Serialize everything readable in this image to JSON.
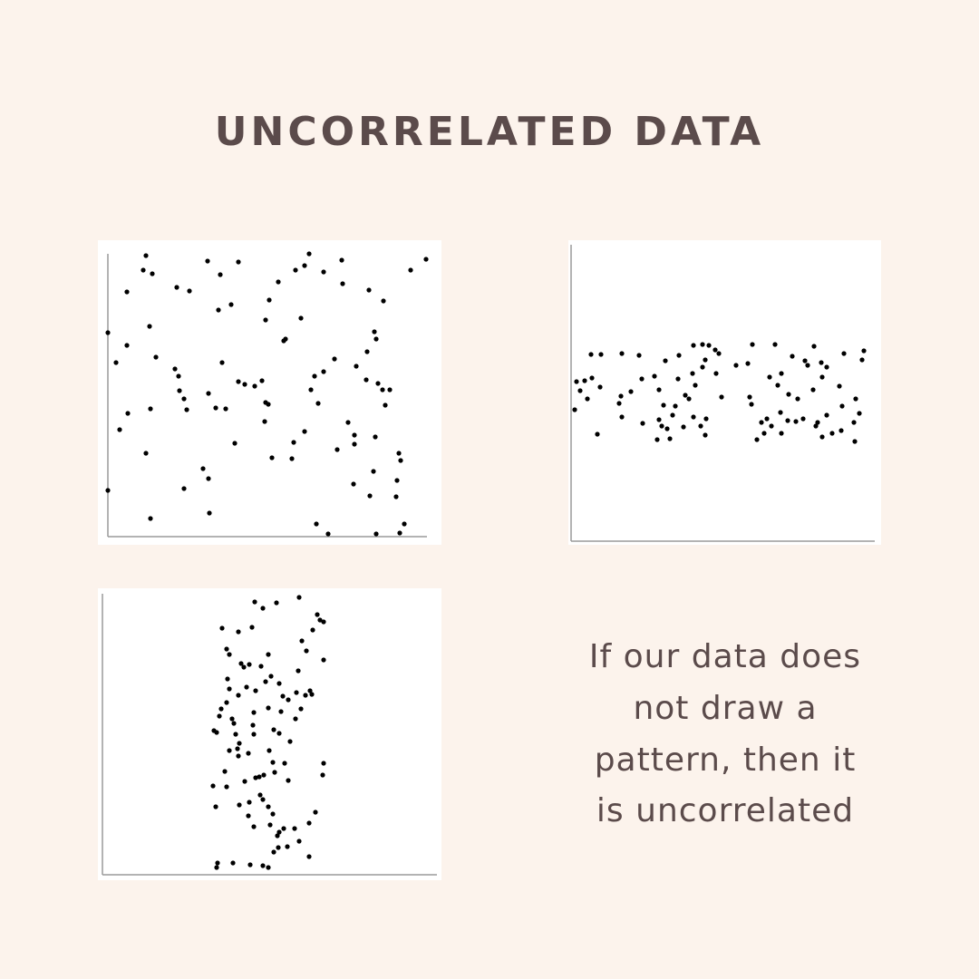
{
  "title": "UNCORRELATED DATA",
  "caption": [
    "If our data does",
    "not draw a",
    "pattern, then it",
    "is uncorrelated"
  ],
  "chart_data": [
    {
      "type": "scatter",
      "color": "#000000",
      "xlim": [
        0,
        352
      ],
      "ylim": [
        0,
        312
      ],
      "x": [
        42,
        39,
        49,
        110,
        124,
        144,
        222,
        217,
        207,
        238,
        258,
        334,
        351,
        21,
        76,
        90,
        188,
        178,
        259,
        288,
        304,
        122,
        136,
        174,
        213,
        46,
        0,
        21,
        196,
        194,
        294,
        296,
        286,
        9,
        53,
        126,
        74,
        78,
        250,
        274,
        238,
        228,
        144,
        151,
        162,
        170,
        285,
        298,
        303,
        311,
        84,
        111,
        79,
        119,
        130,
        87,
        22,
        47,
        174,
        177,
        306,
        224,
        232,
        173,
        13,
        265,
        217,
        272,
        272,
        295,
        205,
        140,
        253,
        42,
        181,
        203,
        321,
        323,
        293,
        105,
        111,
        319,
        271,
        84,
        0,
        289,
        318,
        112,
        47,
        230,
        243,
        296,
        322,
        327
      ],
      "values": [
        310,
        294,
        290,
        304,
        289,
        303,
        312,
        299,
        294,
        292,
        305,
        294,
        306,
        270,
        275,
        271,
        281,
        261,
        279,
        272,
        260,
        250,
        256,
        239,
        241,
        232,
        225,
        211,
        218,
        216,
        226,
        218,
        204,
        192,
        198,
        192,
        185,
        177,
        196,
        188,
        182,
        177,
        171,
        168,
        166,
        172,
        173,
        169,
        162,
        162,
        152,
        158,
        161,
        142,
        141,
        140,
        136,
        141,
        148,
        146,
        145,
        162,
        147,
        127,
        118,
        126,
        116,
        112,
        102,
        110,
        104,
        103,
        96,
        92,
        87,
        86,
        92,
        84,
        72,
        75,
        64,
        62,
        58,
        53,
        51,
        45,
        44,
        26,
        20,
        14,
        3,
        3,
        4,
        14
      ]
    },
    {
      "type": "scatter",
      "color": "#000000",
      "xlim": [
        0,
        335
      ],
      "ylim": [
        0,
        327
      ],
      "x": [
        22,
        33,
        56,
        75,
        104,
        119,
        135,
        145,
        152,
        159,
        163,
        182,
        195,
        200,
        225,
        244,
        258,
        268,
        261,
        276,
        282,
        301,
        323,
        321,
        6,
        15,
        23,
        32,
        10,
        18,
        4,
        55,
        53,
        66,
        78,
        92,
        97,
        118,
        134,
        148,
        145,
        160,
        137,
        126,
        115,
        102,
        130,
        166,
        197,
        219,
        228,
        232,
        240,
        250,
        267,
        277,
        296,
        299,
        314,
        318,
        56,
        79,
        97,
        106,
        100,
        112,
        124,
        135,
        149,
        143,
        109,
        95,
        148,
        29,
        199,
        210,
        216,
        231,
        239,
        221,
        213,
        205,
        232,
        248,
        256,
        272,
        282,
        270,
        277,
        288,
        298,
        312,
        313
      ],
      "values": [
        206,
        206,
        207,
        205,
        199,
        205,
        216,
        217,
        216,
        211,
        207,
        194,
        196,
        217,
        217,
        204,
        199,
        215,
        194,
        197,
        192,
        207,
        210,
        200,
        176,
        177,
        180,
        170,
        166,
        157,
        145,
        160,
        152,
        165,
        179,
        182,
        167,
        179,
        185,
        200,
        192,
        185,
        172,
        161,
        149,
        150,
        157,
        159,
        159,
        181,
        172,
        185,
        162,
        157,
        167,
        181,
        171,
        149,
        157,
        141,
        137,
        130,
        134,
        124,
        127,
        139,
        126,
        137,
        135,
        127,
        113,
        112,
        117,
        118,
        151,
        131,
        135,
        142,
        133,
        127,
        119,
        112,
        119,
        132,
        135,
        131,
        139,
        127,
        115,
        119,
        122,
        131,
        110
      ]
    },
    {
      "type": "scatter",
      "color": "#000000",
      "xlim": [
        0,
        369
      ],
      "ylim": [
        0,
        310
      ],
      "x": [
        168,
        177,
        192,
        217,
        237,
        240,
        244,
        232,
        132,
        150,
        165,
        137,
        140,
        153,
        162,
        156,
        183,
        175,
        220,
        225,
        244,
        216,
        186,
        180,
        195,
        138,
        140,
        150,
        159,
        169,
        199,
        205,
        214,
        224,
        229,
        231,
        219,
        213,
        197,
        183,
        167,
        137,
        131,
        129,
        143,
        145,
        123,
        126,
        147,
        166,
        167,
        189,
        195,
        207,
        151,
        149,
        150,
        140,
        161,
        184,
        188,
        201,
        190,
        178,
        173,
        169,
        205,
        244,
        243,
        135,
        122,
        137,
        157,
        125,
        151,
        162,
        174,
        177,
        183,
        188,
        161,
        167,
        185,
        195,
        200,
        212,
        228,
        235,
        193,
        204,
        194,
        189,
        217,
        228,
        127,
        126,
        144,
        163,
        177,
        183
      ],
      "values": [
        301,
        294,
        300,
        306,
        287,
        281,
        279,
        270,
        272,
        268,
        273,
        249,
        243,
        233,
        232,
        229,
        243,
        230,
        258,
        247,
        237,
        225,
        219,
        213,
        211,
        216,
        205,
        198,
        207,
        203,
        197,
        193,
        201,
        198,
        203,
        199,
        183,
        172,
        180,
        184,
        179,
        190,
        183,
        175,
        172,
        167,
        159,
        157,
        155,
        165,
        155,
        160,
        156,
        147,
        145,
        139,
        131,
        137,
        134,
        137,
        124,
        123,
        113,
        110,
        108,
        107,
        104,
        123,
        110,
        114,
        98,
        97,
        103,
        75,
        77,
        80,
        88,
        83,
        75,
        67,
        65,
        53,
        55,
        47,
        51,
        51,
        57,
        69,
        43,
        31,
        30,
        25,
        37,
        20,
        13,
        8,
        13,
        11,
        10,
        8
      ]
    }
  ]
}
